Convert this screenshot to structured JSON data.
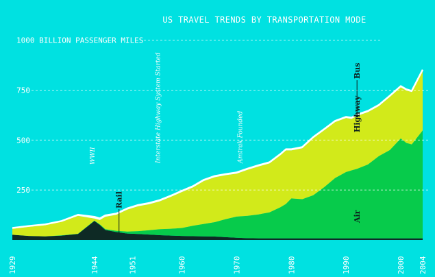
{
  "colors": {
    "background": "#00e1e1",
    "highway": "#d2ea1a",
    "air": "#07cb4b",
    "rail": "#0e2a25",
    "bus": "#ffffff",
    "text": "#ffffff",
    "annotation": "#0b1f1c"
  },
  "chart_data": {
    "type": "area",
    "stacked": true,
    "title": "US TRAVEL TRENDS BY TRANSPORTATION MODE",
    "unit_label": "1000 BILLION PASSENGER MILES",
    "x": [
      1929,
      1932,
      1935,
      1938,
      1941,
      1944,
      1945,
      1946,
      1948,
      1950,
      1952,
      1954,
      1956,
      1958,
      1960,
      1962,
      1964,
      1966,
      1968,
      1970,
      1972,
      1974,
      1976,
      1978,
      1979,
      1980,
      1982,
      1984,
      1986,
      1988,
      1990,
      1991,
      1992,
      1994,
      1996,
      1998,
      2000,
      2001,
      2002,
      2004
    ],
    "xticks": [
      1929,
      1944,
      1951,
      1960,
      1970,
      1980,
      1990,
      2000,
      2004
    ],
    "yticks": [
      250,
      500,
      750
    ],
    "ylim": [
      0,
      1100
    ],
    "series": [
      {
        "name": "Rail",
        "values": [
          26,
          20,
          18,
          22,
          30,
          95,
          75,
          50,
          40,
          32,
          30,
          27,
          24,
          22,
          20,
          19,
          18,
          17,
          14,
          11,
          9,
          8,
          8,
          8,
          8,
          8,
          8,
          8,
          8,
          8,
          8,
          8,
          8,
          8,
          8,
          8,
          8,
          8,
          8,
          8
        ]
      },
      {
        "name": "Air",
        "values": [
          0,
          0,
          0,
          1,
          1,
          2,
          3,
          4,
          6,
          10,
          14,
          22,
          30,
          34,
          40,
          52,
          62,
          72,
          90,
          106,
          112,
          120,
          130,
          156,
          172,
          200,
          196,
          216,
          256,
          302,
          332,
          340,
          348,
          370,
          412,
          442,
          500,
          478,
          470,
          540
        ]
      },
      {
        "name": "Highway",
        "values": [
          30,
          46,
          56,
          68,
          90,
          10,
          22,
          62,
          80,
          110,
          125,
          130,
          140,
          160,
          180,
          192,
          215,
          225,
          220,
          215,
          230,
          240,
          245,
          260,
          268,
          240,
          255,
          285,
          285,
          280,
          270,
          258,
          265,
          262,
          250,
          266,
          256,
          262,
          262,
          298
        ]
      },
      {
        "name": "Bus",
        "values": [
          4,
          4,
          4,
          4,
          5,
          9,
          8,
          7,
          6,
          6,
          6,
          6,
          6,
          6,
          6,
          6,
          6,
          6,
          6,
          6,
          6,
          6,
          6,
          6,
          6,
          6,
          6,
          6,
          6,
          6,
          6,
          6,
          6,
          6,
          6,
          6,
          6,
          6,
          6,
          6
        ]
      }
    ],
    "annotations": [
      {
        "label": "WWII",
        "x": 1944
      },
      {
        "label": "Interstate Highway System Started",
        "x": 1956
      },
      {
        "label": "Amtrak Founded",
        "x": 1971
      }
    ]
  }
}
